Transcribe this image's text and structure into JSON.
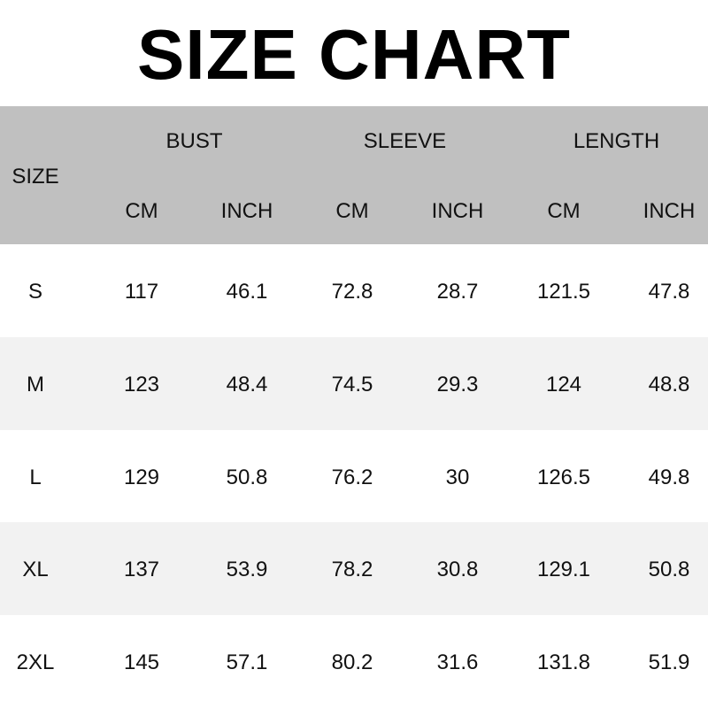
{
  "title": "SIZE CHART",
  "header": {
    "size_label": "SIZE",
    "groups": [
      "BUST",
      "SLEEVE",
      "LENGTH"
    ],
    "units": [
      "CM",
      "INCH",
      "CM",
      "INCH",
      "CM",
      "INCH"
    ]
  },
  "rows": [
    {
      "size": "S",
      "values": [
        "117",
        "46.1",
        "72.8",
        "28.7",
        "121.5",
        "47.8"
      ]
    },
    {
      "size": "M",
      "values": [
        "123",
        "48.4",
        "74.5",
        "29.3",
        "124",
        "48.8"
      ]
    },
    {
      "size": "L",
      "values": [
        "129",
        "50.8",
        "76.2",
        "30",
        "126.5",
        "49.8"
      ]
    },
    {
      "size": "XL",
      "values": [
        "137",
        "53.9",
        "78.2",
        "30.8",
        "129.1",
        "50.8"
      ]
    },
    {
      "size": "2XL",
      "values": [
        "145",
        "57.1",
        "80.2",
        "31.6",
        "131.8",
        "51.9"
      ]
    }
  ],
  "colors": {
    "header_bg": "#c0c0c0",
    "alt_row_bg": "#f2f2f2"
  }
}
